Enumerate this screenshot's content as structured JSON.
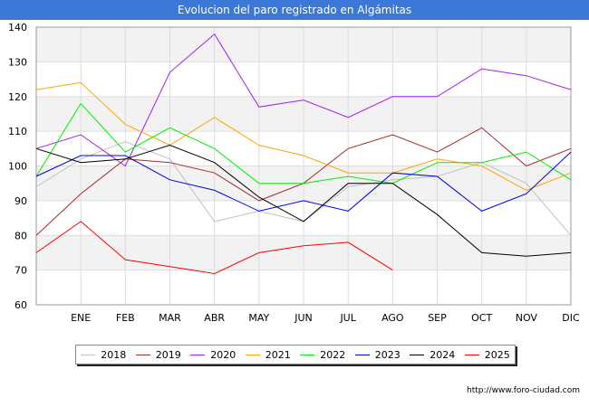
{
  "chart_data": {
    "type": "line",
    "title": "Evolucion del paro registrado en Algámitas",
    "categories": [
      "",
      "ENE",
      "FEB",
      "MAR",
      "ABR",
      "MAY",
      "JUN",
      "JUL",
      "AGO",
      "SEP",
      "OCT",
      "NOV",
      "DIC"
    ],
    "ylim": [
      60,
      140
    ],
    "yticks": [
      60,
      70,
      80,
      90,
      100,
      110,
      120,
      130,
      140
    ],
    "grid": true,
    "legend_position": "bottom",
    "series": [
      {
        "name": "2018",
        "color": "#c0c0c0",
        "values": [
          94,
          102,
          107,
          102,
          84,
          87,
          84,
          94,
          96,
          97,
          101,
          95,
          80
        ]
      },
      {
        "name": "2019",
        "color": "#a52a2a",
        "values": [
          80,
          92,
          102,
          101,
          98,
          90,
          95,
          105,
          109,
          104,
          111,
          100,
          105
        ]
      },
      {
        "name": "2020",
        "color": "#a020f0",
        "values": [
          105,
          109,
          100,
          127,
          138,
          117,
          119,
          114,
          120,
          120,
          128,
          126,
          122
        ]
      },
      {
        "name": "2021",
        "color": "#ffa500",
        "values": [
          122,
          124,
          112,
          106,
          114,
          106,
          103,
          98,
          98,
          102,
          100,
          93,
          98
        ]
      },
      {
        "name": "2022",
        "color": "#00ee00",
        "values": [
          97,
          118,
          104,
          111,
          105,
          95,
          95,
          97,
          95,
          101,
          101,
          104,
          96
        ]
      },
      {
        "name": "2023",
        "color": "#0000dd",
        "values": [
          97,
          103,
          103,
          96,
          93,
          87,
          90,
          87,
          98,
          97,
          87,
          92,
          104
        ]
      },
      {
        "name": "2024",
        "color": "#000000",
        "values": [
          105,
          101,
          102,
          106,
          101,
          91,
          84,
          95,
          95,
          86,
          75,
          74,
          75
        ]
      },
      {
        "name": "2025",
        "color": "#ff0000",
        "values": [
          75,
          84,
          73,
          71,
          69,
          75,
          77,
          78,
          70,
          null,
          null,
          null,
          null
        ]
      }
    ]
  },
  "source": "http://www.foro-ciudad.com"
}
